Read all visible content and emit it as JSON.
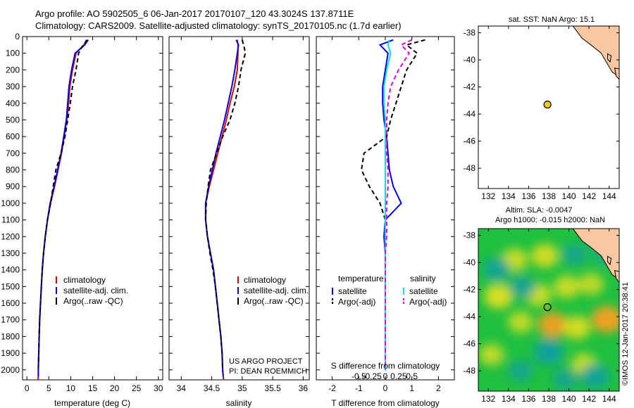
{
  "header": {
    "line1": "Argo profile: AO 5902505_6 06-Jan-2017 20170107_120 43.3024S 137.8711E",
    "line2": "Climatology: CARS2009. Satellite-adjusted climatology: synTS_20170105.nc (1.7d earlier)"
  },
  "colors": {
    "climatology": "#e00000",
    "satellite": "#0000ee",
    "argo": "#000000",
    "salinity_satellite": "#00e0e0",
    "salinity_argo": "#e000e0",
    "land": "#f8c8a0",
    "ocean_base": "#20c040",
    "float_marker": "#f0c820"
  },
  "chart_data": [
    {
      "type": "line",
      "name": "temperature-profile",
      "xlabel": "temperature (deg C)",
      "xlim": [
        -1,
        31
      ],
      "xticks": [
        0,
        5,
        10,
        15,
        20,
        25,
        30
      ],
      "ylim": [
        2060,
        0
      ],
      "yticks": [
        0,
        100,
        200,
        300,
        400,
        500,
        600,
        700,
        800,
        900,
        1000,
        1100,
        1200,
        1300,
        1400,
        1500,
        1600,
        1700,
        1800,
        1900,
        2000
      ],
      "legend": [
        "climatology",
        "satellite-adj. clim.",
        "Argo(..raw -QC)"
      ],
      "series": [
        {
          "name": "climatology",
          "style": "solid",
          "x": [
            13.6,
            13.0,
            11.2,
            10.4,
            9.8,
            9.5,
            9.1,
            8.5,
            7.9,
            7.1,
            6.3,
            5.4,
            4.7,
            4.2,
            3.8,
            3.5,
            3.3,
            3.1,
            2.9,
            2.8,
            2.7,
            2.6,
            2.6,
            2.5
          ],
          "y": [
            20,
            50,
            100,
            200,
            300,
            400,
            500,
            600,
            700,
            800,
            900,
            1000,
            1100,
            1200,
            1300,
            1400,
            1500,
            1600,
            1700,
            1800,
            1900,
            2000,
            2050,
            2060
          ]
        },
        {
          "name": "satellite-adj. clim.",
          "style": "solid",
          "x": [
            14.0,
            13.2,
            11.0,
            10.2,
            9.6,
            9.3,
            9.0,
            8.4,
            7.8,
            7.0,
            6.2,
            5.3,
            4.7,
            4.2,
            3.8,
            3.5,
            3.3,
            3.1,
            2.9,
            2.8,
            2.7,
            2.6,
            2.6
          ],
          "y": [
            20,
            50,
            100,
            200,
            300,
            400,
            500,
            600,
            700,
            800,
            900,
            1000,
            1100,
            1200,
            1300,
            1400,
            1500,
            1600,
            1700,
            1800,
            1900,
            2000,
            2040
          ]
        },
        {
          "name": "Argo(..raw -QC)",
          "style": "dashed",
          "x": [
            13.8,
            12.6,
            11.8,
            11.2,
            10.4,
            9.9,
            9.3,
            8.7,
            7.8,
            6.6,
            6.0,
            5.4,
            4.7,
            4.2,
            3.8,
            3.5,
            3.3,
            3.1,
            2.9,
            2.8,
            2.7,
            2.6
          ],
          "y": [
            20,
            60,
            100,
            200,
            300,
            400,
            500,
            600,
            700,
            800,
            900,
            1000,
            1100,
            1200,
            1300,
            1400,
            1500,
            1600,
            1700,
            1800,
            1900,
            2000
          ]
        }
      ]
    },
    {
      "type": "line",
      "name": "salinity-profile",
      "xlabel": "salinity",
      "xlim": [
        33.8,
        36.1
      ],
      "xticks": [
        34,
        34.5,
        35,
        35.5,
        36
      ],
      "ylim": [
        2060,
        0
      ],
      "legend": [
        "climatology",
        "satellite-adj. clim.",
        "Argo(..raw -QC)"
      ],
      "annotation": [
        "US ARGO PROJECT",
        "PI: DEAN ROEMMICH"
      ],
      "series": [
        {
          "name": "climatology",
          "style": "solid",
          "x": [
            34.92,
            34.93,
            34.93,
            34.92,
            34.87,
            34.8,
            34.74,
            34.67,
            34.6,
            34.53,
            34.46,
            34.4,
            34.4,
            34.43,
            34.48,
            34.53,
            34.56,
            34.59,
            34.62,
            34.65,
            34.67,
            34.68,
            34.69,
            34.7
          ],
          "y": [
            20,
            50,
            100,
            200,
            300,
            400,
            500,
            600,
            700,
            800,
            900,
            1000,
            1100,
            1200,
            1300,
            1400,
            1500,
            1600,
            1700,
            1800,
            1900,
            2000,
            2050,
            2060
          ]
        },
        {
          "name": "satellite-adj. clim.",
          "style": "solid",
          "x": [
            34.9,
            34.94,
            34.92,
            34.88,
            34.83,
            34.77,
            34.71,
            34.64,
            34.57,
            34.51,
            34.45,
            34.4,
            34.4,
            34.43,
            34.48,
            34.53,
            34.56,
            34.59,
            34.62,
            34.65,
            34.67,
            34.68,
            34.69
          ],
          "y": [
            20,
            50,
            100,
            200,
            300,
            400,
            500,
            600,
            700,
            800,
            900,
            1000,
            1100,
            1200,
            1300,
            1400,
            1500,
            1600,
            1700,
            1800,
            1900,
            2000,
            2040
          ]
        },
        {
          "name": "Argo(..raw -QC)",
          "style": "dashed",
          "x": [
            35.0,
            35.03,
            35.05,
            34.98,
            34.94,
            34.88,
            34.8,
            34.68,
            34.58,
            34.48,
            34.44,
            34.41,
            34.4,
            34.43,
            34.47,
            34.52,
            34.56,
            34.59,
            34.62,
            34.65,
            34.67,
            34.68
          ],
          "y": [
            20,
            60,
            100,
            200,
            300,
            400,
            500,
            600,
            700,
            800,
            900,
            1000,
            1100,
            1200,
            1300,
            1400,
            1500,
            1600,
            1700,
            1800,
            1900,
            2000
          ]
        }
      ]
    },
    {
      "type": "line",
      "name": "difference-profile",
      "xlabel": "T difference from climatology",
      "xlabel2": "S difference from climatology",
      "xlim": [
        -2.6,
        2.6
      ],
      "xticks": [
        -2,
        -1,
        0,
        1,
        2
      ],
      "xticks2": [
        "-0.5",
        "-0.25",
        "0",
        "0.25",
        "0.5"
      ],
      "ylim": [
        2060,
        0
      ],
      "legend_temperature": [
        "temperature",
        "satellite",
        "Argo(-adj)"
      ],
      "legend_salinity": [
        "salinity",
        "satellite",
        "Argo(-adj)"
      ],
      "series": [
        {
          "name": "temperature satellite",
          "style": "solid",
          "x": [
            0.3,
            -0.2,
            0.1,
            0.0,
            -0.1,
            -0.1,
            -0.05,
            0.05,
            0.1,
            0.15,
            0.3,
            0.6,
            0.0,
            -0.05,
            0.0,
            0.0,
            0.0,
            0.0,
            0.0,
            0.0,
            0.0,
            0.0
          ],
          "y": [
            20,
            50,
            100,
            200,
            300,
            400,
            500,
            600,
            700,
            800,
            900,
            1000,
            1100,
            1200,
            1300,
            1400,
            1500,
            1600,
            1700,
            1800,
            1900,
            2000
          ]
        },
        {
          "name": "temperature Argo(-adj)",
          "style": "dashed",
          "x": [
            1.5,
            0.8,
            1.2,
            0.8,
            0.6,
            0.4,
            0.2,
            0.05,
            -0.8,
            -0.9,
            -0.6,
            -0.2,
            0.0,
            0.0,
            0.0,
            0.0,
            0.0,
            0.0,
            0.0,
            0.0,
            0.0,
            0.0
          ],
          "y": [
            20,
            50,
            100,
            200,
            300,
            400,
            500,
            600,
            700,
            800,
            900,
            1000,
            1100,
            1200,
            1300,
            1400,
            1500,
            1600,
            1700,
            1800,
            1900,
            2000
          ]
        },
        {
          "name": "salinity satellite",
          "style": "solid",
          "x": [
            0.15,
            0.1,
            0.2,
            0.05,
            -0.05,
            -0.05,
            0.0,
            0.0,
            0.0,
            0.0,
            0.0,
            0.0,
            0.0,
            0.0,
            0.0,
            0.0,
            0.0,
            0.0,
            0.0,
            0.0,
            0.0
          ],
          "y": [
            20,
            50,
            100,
            200,
            300,
            400,
            500,
            600,
            700,
            800,
            900,
            1000,
            1100,
            1200,
            1300,
            1400,
            1500,
            1600,
            1700,
            1800,
            2000
          ]
        },
        {
          "name": "salinity Argo(-adj)",
          "style": "dashed",
          "x": [
            1.0,
            0.6,
            0.9,
            0.5,
            0.2,
            0.1,
            0.05,
            0.05,
            0.05,
            0.1,
            0.1,
            0.05,
            0.05,
            0.05,
            0.0,
            0.0,
            0.0,
            0.0,
            0.0,
            0.0,
            0.0
          ],
          "y": [
            20,
            50,
            100,
            200,
            300,
            400,
            500,
            600,
            700,
            800,
            900,
            1000,
            1100,
            1200,
            1300,
            1400,
            1500,
            1600,
            1700,
            1800,
            2000
          ]
        }
      ]
    },
    {
      "type": "scatter",
      "name": "sst-map",
      "title": "sat. SST: NaN Argo: 15.1",
      "xlim": [
        131,
        145
      ],
      "xticks": [
        132,
        134,
        136,
        138,
        140,
        142,
        144
      ],
      "ylim": [
        -49.5,
        -37.5
      ],
      "yticks": [
        -38,
        -40,
        -42,
        -44,
        -46,
        -48
      ],
      "points": [
        {
          "x": 137.87,
          "y": -43.3
        }
      ]
    },
    {
      "type": "heatmap",
      "name": "sla-map",
      "title": "Altim. SLA: -0.0047",
      "subtitle": "Argo h1000: -0.015 h2000: NaN",
      "xlim": [
        131,
        145
      ],
      "xticks": [
        132,
        134,
        136,
        138,
        140,
        142,
        144
      ],
      "ylim": [
        -49.5,
        -37.5
      ],
      "yticks": [
        -38,
        -40,
        -42,
        -44,
        -46,
        -48
      ],
      "points": [
        {
          "x": 137.87,
          "y": -43.3
        }
      ],
      "blobs": [
        {
          "x": 133.0,
          "y": -42.5,
          "v": 0.8
        },
        {
          "x": 137.6,
          "y": -39.5,
          "v": 0.7
        },
        {
          "x": 134.6,
          "y": -39.8,
          "v": 0.6
        },
        {
          "x": 139.8,
          "y": -41.8,
          "v": 0.6
        },
        {
          "x": 142.2,
          "y": -41.6,
          "v": 0.5
        },
        {
          "x": 143.8,
          "y": -44.2,
          "v": 1.0
        },
        {
          "x": 138.4,
          "y": -44.6,
          "v": 0.9
        },
        {
          "x": 140.8,
          "y": -44.8,
          "v": 0.7
        },
        {
          "x": 135.2,
          "y": -44.4,
          "v": 0.5
        },
        {
          "x": 137.0,
          "y": -42.4,
          "v": 0.6
        },
        {
          "x": 132.3,
          "y": -46.8,
          "v": 0.5
        },
        {
          "x": 141.5,
          "y": -47.5,
          "v": 0.5
        },
        {
          "x": 138.0,
          "y": -46.6,
          "v": -0.9
        },
        {
          "x": 132.8,
          "y": -40.5,
          "v": -0.7
        },
        {
          "x": 135.4,
          "y": -41.8,
          "v": -0.6
        },
        {
          "x": 142.6,
          "y": -48.4,
          "v": -0.8
        },
        {
          "x": 135.2,
          "y": -48.0,
          "v": -0.5
        },
        {
          "x": 140.6,
          "y": -39.4,
          "v": -0.5
        },
        {
          "x": 139.6,
          "y": -48.6,
          "v": -0.5
        },
        {
          "x": 143.6,
          "y": -39.4,
          "v": -0.4
        }
      ]
    }
  ],
  "watermark": "©IMOS 12-Jan-2017 20:38:41"
}
